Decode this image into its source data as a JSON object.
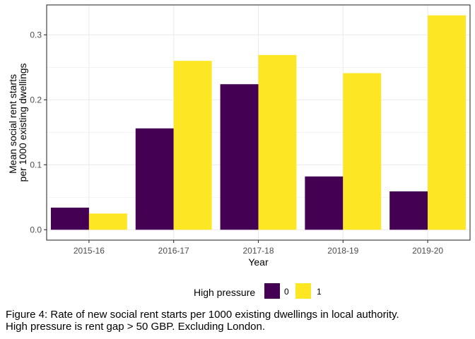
{
  "chart_data": {
    "type": "bar",
    "title": "",
    "xlabel": "Year",
    "ylabel_lines": [
      "Mean social rent starts",
      "per 1000 existing dwellings"
    ],
    "categories": [
      "2015-16",
      "2016-17",
      "2017-18",
      "2018-19",
      "2019-20"
    ],
    "series": [
      {
        "name": "0",
        "color": "#440154",
        "values": [
          0.034,
          0.156,
          0.224,
          0.082,
          0.059
        ]
      },
      {
        "name": "1",
        "color": "#FDE725",
        "values": [
          0.025,
          0.26,
          0.269,
          0.241,
          0.33
        ]
      }
    ],
    "ylim": [
      -0.016,
      0.346
    ],
    "yticks": [
      0.0,
      0.1,
      0.2,
      0.3
    ],
    "ytick_labels": [
      "0.0",
      "0.1",
      "0.2",
      "0.3"
    ],
    "grid": true,
    "legend": {
      "title": "High pressure",
      "position": "bottom"
    }
  },
  "caption": {
    "line1": "Figure 4: Rate of new social rent starts per 1000 existing dwellings in local authority.",
    "line2": "High pressure is rent gap > 50 GBP. Excluding London."
  }
}
